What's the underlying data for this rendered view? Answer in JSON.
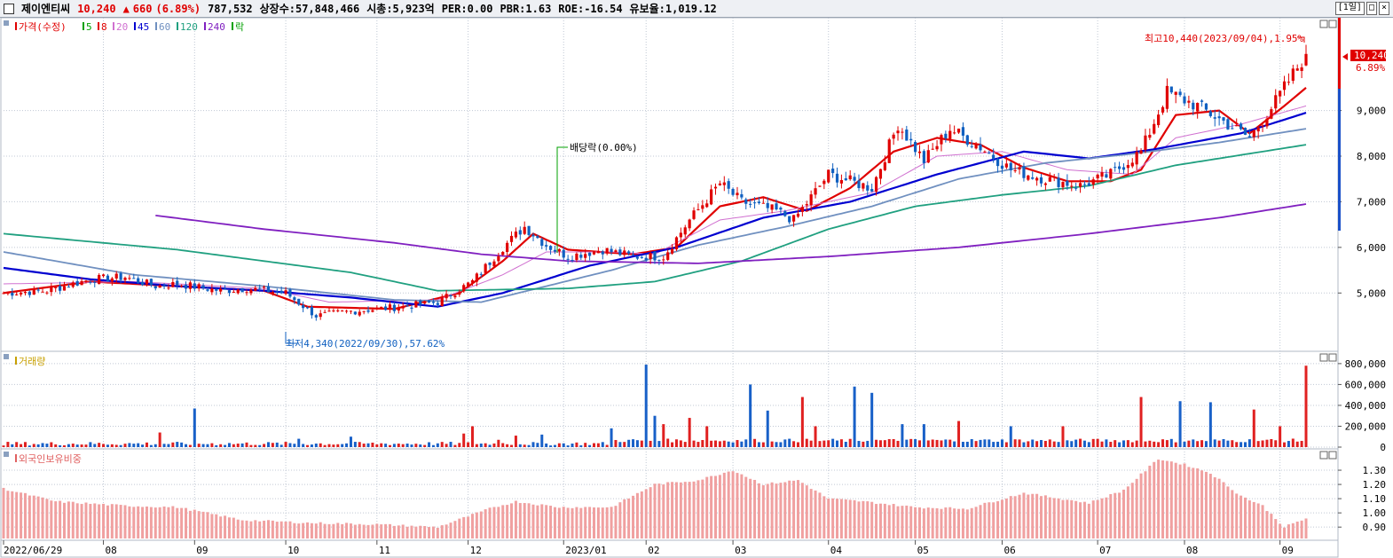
{
  "header": {
    "stock_name": "제이엔티씨",
    "price": "10,240",
    "change_arrow": "▲",
    "change": "660",
    "change_pct": "(6.89%)",
    "volume": "787,532",
    "shares": "상장수:57,848,466",
    "mcap": "시총:5,923억",
    "per": "PER:0.00",
    "pbr": "PBR:1.63",
    "roe": "ROE:-16.54",
    "reserve": "유보율:1,019.12",
    "period_btn": "[1일]",
    "btn_restore": "□",
    "btn_close": "×"
  },
  "legend": {
    "price_label": "가격(수정)",
    "ma": [
      {
        "label": "5",
        "color": "#00a000"
      },
      {
        "label": "8",
        "color": "#e00000"
      },
      {
        "label": "20",
        "color": "#d070d0"
      },
      {
        "label": "45",
        "color": "#0000d0"
      },
      {
        "label": "60",
        "color": "#7090c0"
      },
      {
        "label": "120",
        "color": "#20a080"
      },
      {
        "label": "240",
        "color": "#8020c0"
      }
    ],
    "ex_label": "락",
    "volume_label": "거래량",
    "foreign_label": "외국인보유비중"
  },
  "annotations": {
    "high": "최고10,440(2023/09/04),1.95%",
    "low": "최저4,340(2022/09/30),57.62%",
    "dividend": "배당락(0.00%)",
    "last_price": "10,240",
    "last_pct": "6.89%"
  },
  "chart_data": [
    {
      "type": "candlestick",
      "title": "가격(수정)",
      "ylim": [
        3800,
        10800
      ],
      "yticks": [
        "5,000",
        "6,000",
        "7,000",
        "8,000",
        "9,000"
      ],
      "high": 10440,
      "low": 4340,
      "last": 10240,
      "anchors_close": [
        [
          0,
          5000
        ],
        [
          10,
          5050
        ],
        [
          20,
          5300
        ],
        [
          28,
          5350
        ],
        [
          35,
          5150
        ],
        [
          40,
          5200
        ],
        [
          50,
          5050
        ],
        [
          56,
          5100
        ],
        [
          65,
          5000
        ],
        [
          72,
          4500
        ],
        [
          80,
          4600
        ],
        [
          92,
          4700
        ],
        [
          100,
          4800
        ],
        [
          108,
          5250
        ],
        [
          115,
          6000
        ],
        [
          120,
          6450
        ],
        [
          125,
          6050
        ],
        [
          130,
          5800
        ],
        [
          138,
          5950
        ],
        [
          145,
          5800
        ],
        [
          152,
          5800
        ],
        [
          158,
          6600
        ],
        [
          165,
          7400
        ],
        [
          170,
          7000
        ],
        [
          178,
          6800
        ],
        [
          182,
          6600
        ],
        [
          190,
          7600
        ],
        [
          200,
          7300
        ],
        [
          206,
          8700
        ],
        [
          212,
          7900
        ],
        [
          218,
          8600
        ],
        [
          225,
          8200
        ],
        [
          232,
          7700
        ],
        [
          240,
          7500
        ],
        [
          248,
          7350
        ],
        [
          255,
          7600
        ],
        [
          262,
          8100
        ],
        [
          268,
          9400
        ],
        [
          275,
          9100
        ],
        [
          282,
          8700
        ],
        [
          287,
          8400
        ],
        [
          293,
          9200
        ],
        [
          300,
          10240
        ]
      ],
      "ma": [
        {
          "name": "8",
          "anchors": [
            [
              0,
              5000
            ],
            [
              20,
              5250
            ],
            [
              40,
              5150
            ],
            [
              60,
              5050
            ],
            [
              70,
              4700
            ],
            [
              90,
              4650
            ],
            [
              105,
              5000
            ],
            [
              115,
              5700
            ],
            [
              122,
              6300
            ],
            [
              130,
              5950
            ],
            [
              145,
              5850
            ],
            [
              155,
              6000
            ],
            [
              165,
              6900
            ],
            [
              175,
              7100
            ],
            [
              185,
              6800
            ],
            [
              195,
              7300
            ],
            [
              205,
              8100
            ],
            [
              215,
              8400
            ],
            [
              225,
              8250
            ],
            [
              235,
              7750
            ],
            [
              245,
              7450
            ],
            [
              255,
              7450
            ],
            [
              262,
              7700
            ],
            [
              270,
              8900
            ],
            [
              280,
              9000
            ],
            [
              287,
              8500
            ],
            [
              295,
              9100
            ],
            [
              300,
              9500
            ]
          ]
        },
        {
          "name": "20",
          "anchors": [
            [
              0,
              5200
            ],
            [
              30,
              5250
            ],
            [
              60,
              5100
            ],
            [
              75,
              4800
            ],
            [
              100,
              4850
            ],
            [
              115,
              5400
            ],
            [
              125,
              5900
            ],
            [
              140,
              5900
            ],
            [
              150,
              5850
            ],
            [
              165,
              6600
            ],
            [
              180,
              6800
            ],
            [
              200,
              7200
            ],
            [
              215,
              8000
            ],
            [
              230,
              8100
            ],
            [
              245,
              7700
            ],
            [
              260,
              7600
            ],
            [
              270,
              8400
            ],
            [
              285,
              8700
            ],
            [
              300,
              9100
            ]
          ]
        },
        {
          "name": "45",
          "anchors": [
            [
              0,
              5550
            ],
            [
              20,
              5300
            ],
            [
              40,
              5150
            ],
            [
              60,
              5050
            ],
            [
              80,
              4900
            ],
            [
              100,
              4700
            ],
            [
              115,
              5000
            ],
            [
              135,
              5600
            ],
            [
              155,
              6000
            ],
            [
              175,
              6650
            ],
            [
              195,
              7000
            ],
            [
              215,
              7600
            ],
            [
              235,
              8100
            ],
            [
              250,
              7950
            ],
            [
              265,
              8150
            ],
            [
              285,
              8500
            ],
            [
              300,
              8950
            ]
          ]
        },
        {
          "name": "60",
          "anchors": [
            [
              0,
              5900
            ],
            [
              30,
              5400
            ],
            [
              60,
              5150
            ],
            [
              90,
              4850
            ],
            [
              110,
              4800
            ],
            [
              140,
              5500
            ],
            [
              160,
              6050
            ],
            [
              180,
              6450
            ],
            [
              200,
              6900
            ],
            [
              220,
              7500
            ],
            [
              240,
              7850
            ],
            [
              260,
              8050
            ],
            [
              280,
              8300
            ],
            [
              300,
              8600
            ]
          ]
        },
        {
          "name": "120",
          "anchors": [
            [
              0,
              6300
            ],
            [
              40,
              5950
            ],
            [
              80,
              5450
            ],
            [
              100,
              5050
            ],
            [
              130,
              5100
            ],
            [
              150,
              5250
            ],
            [
              170,
              5700
            ],
            [
              190,
              6400
            ],
            [
              210,
              6900
            ],
            [
              230,
              7150
            ],
            [
              250,
              7350
            ],
            [
              270,
              7800
            ],
            [
              300,
              8250
            ]
          ]
        },
        {
          "name": "240",
          "anchors": [
            [
              35,
              6700
            ],
            [
              60,
              6400
            ],
            [
              90,
              6100
            ],
            [
              110,
              5850
            ],
            [
              130,
              5700
            ],
            [
              160,
              5650
            ],
            [
              190,
              5800
            ],
            [
              220,
              6000
            ],
            [
              250,
              6300
            ],
            [
              280,
              6650
            ],
            [
              300,
              6950
            ]
          ]
        }
      ]
    },
    {
      "type": "bar",
      "title": "거래량",
      "ylim": [
        0,
        850000
      ],
      "yticks": [
        "0",
        "200,000",
        "400,000",
        "600,000",
        "800,000"
      ],
      "base": 30000,
      "spikes": [
        [
          36,
          140000
        ],
        [
          44,
          370000
        ],
        [
          68,
          80000
        ],
        [
          80,
          100000
        ],
        [
          106,
          130000
        ],
        [
          108,
          200000
        ],
        [
          114,
          70000
        ],
        [
          118,
          110000
        ],
        [
          124,
          120000
        ],
        [
          140,
          180000
        ],
        [
          148,
          790000
        ],
        [
          150,
          300000
        ],
        [
          152,
          220000
        ],
        [
          158,
          280000
        ],
        [
          162,
          200000
        ],
        [
          172,
          600000
        ],
        [
          176,
          350000
        ],
        [
          184,
          480000
        ],
        [
          187,
          200000
        ],
        [
          196,
          580000
        ],
        [
          200,
          520000
        ],
        [
          207,
          220000
        ],
        [
          212,
          220000
        ],
        [
          220,
          250000
        ],
        [
          232,
          200000
        ],
        [
          244,
          200000
        ],
        [
          262,
          480000
        ],
        [
          271,
          440000
        ],
        [
          278,
          430000
        ],
        [
          288,
          360000
        ],
        [
          294,
          200000
        ],
        [
          300,
          780000
        ]
      ]
    },
    {
      "type": "bar",
      "title": "외국인보유비중",
      "ylim": [
        0.82,
        1.4
      ],
      "yticks": [
        "0.90",
        "1.00",
        "1.10",
        "1.20",
        "1.30"
      ],
      "anchors": [
        [
          0,
          1.17
        ],
        [
          12,
          1.08
        ],
        [
          28,
          1.05
        ],
        [
          40,
          1.04
        ],
        [
          55,
          0.95
        ],
        [
          70,
          0.93
        ],
        [
          85,
          0.92
        ],
        [
          100,
          0.9
        ],
        [
          112,
          1.03
        ],
        [
          118,
          1.08
        ],
        [
          128,
          1.04
        ],
        [
          140,
          1.04
        ],
        [
          150,
          1.2
        ],
        [
          160,
          1.23
        ],
        [
          168,
          1.3
        ],
        [
          175,
          1.2
        ],
        [
          183,
          1.23
        ],
        [
          190,
          1.1
        ],
        [
          198,
          1.08
        ],
        [
          210,
          1.04
        ],
        [
          222,
          1.03
        ],
        [
          235,
          1.14
        ],
        [
          250,
          1.07
        ],
        [
          258,
          1.16
        ],
        [
          266,
          1.38
        ],
        [
          272,
          1.34
        ],
        [
          278,
          1.28
        ],
        [
          285,
          1.12
        ],
        [
          290,
          1.05
        ],
        [
          295,
          0.9
        ],
        [
          300,
          0.96
        ]
      ]
    }
  ],
  "x_axis": {
    "labels": [
      "2022/06/29",
      "08",
      "09",
      "10",
      "11",
      "12",
      "2023/01",
      "02",
      "03",
      "04",
      "05",
      "06",
      "07",
      "08",
      "09"
    ],
    "positions": [
      0,
      23,
      44,
      65,
      86,
      107,
      129,
      148,
      168,
      190,
      210,
      230,
      252,
      272,
      294
    ]
  }
}
